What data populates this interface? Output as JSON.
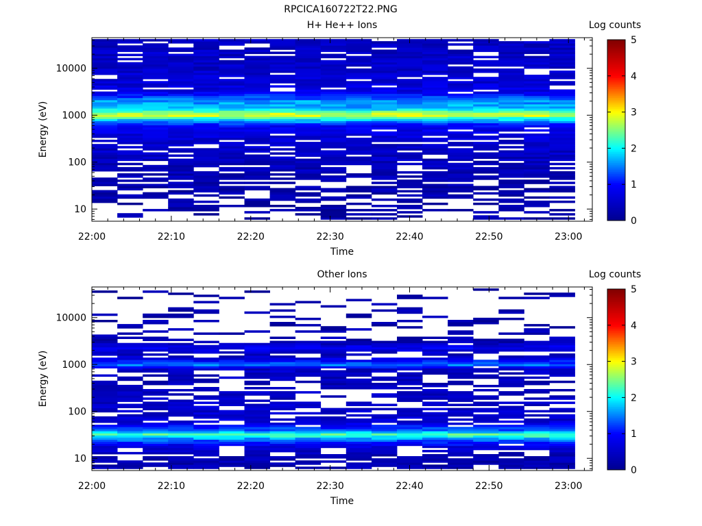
{
  "figure_title": "RPCICA160722T22.PNG",
  "colormap": [
    "#00008f",
    "#0000ff",
    "#00ffff",
    "#ffff00",
    "#ff0000",
    "#800000"
  ],
  "chart_data": [
    {
      "type": "heatmap",
      "title": "H+ He++ Ions",
      "xlabel": "Time",
      "ylabel": "Energy (eV)",
      "y_scale": "log",
      "ylim": [
        5.5,
        45000
      ],
      "xlim": [
        "22:00",
        "23:03"
      ],
      "x_ticks": [
        "22:00",
        "22:10",
        "22:20",
        "22:30",
        "22:40",
        "22:50",
        "23:00"
      ],
      "y_ticks": [
        {
          "value": 10,
          "label": "10"
        },
        {
          "value": 100,
          "label": "100"
        },
        {
          "value": 1000,
          "label": "1000"
        },
        {
          "value": 10000,
          "label": "10000"
        }
      ],
      "colorbar": {
        "label": "Log counts",
        "range": [
          0,
          5
        ],
        "ticks": [
          "0",
          "1",
          "2",
          "3",
          "4",
          "5"
        ]
      },
      "time_bins_start": "22:00",
      "time_bin_minutes": 3.2,
      "time_bin_count": 19,
      "profile": [
        {
          "energy": 10,
          "log_counts": 0.2
        },
        {
          "energy": 20,
          "log_counts": 0.25
        },
        {
          "energy": 40,
          "log_counts": 0.3
        },
        {
          "energy": 100,
          "log_counts": 0.4
        },
        {
          "energy": 300,
          "log_counts": 0.55
        },
        {
          "energy": 600,
          "log_counts": 0.9
        },
        {
          "energy": 850,
          "log_counts": 2.0
        },
        {
          "energy": 1000,
          "log_counts": 2.9
        },
        {
          "energy": 1150,
          "log_counts": 2.6
        },
        {
          "energy": 1400,
          "log_counts": 1.7
        },
        {
          "energy": 2000,
          "log_counts": 1.6
        },
        {
          "energy": 2500,
          "log_counts": 1.2
        },
        {
          "energy": 3500,
          "log_counts": 0.7
        },
        {
          "energy": 10000,
          "log_counts": 0.5
        },
        {
          "energy": 40000,
          "log_counts": 0.45
        }
      ],
      "empty_fraction": [
        {
          "energy": 10,
          "fraction": 0.6
        },
        {
          "energy": 40,
          "fraction": 0.35
        },
        {
          "energy": 100,
          "fraction": 0.2
        },
        {
          "energy": 400,
          "fraction": 0.12
        },
        {
          "energy": 700,
          "fraction": 0
        },
        {
          "energy": 2500,
          "fraction": 0
        },
        {
          "energy": 4000,
          "fraction": 0.12
        },
        {
          "energy": 40000,
          "fraction": 0.15
        }
      ]
    },
    {
      "type": "heatmap",
      "title": "Other Ions",
      "xlabel": "Time",
      "ylabel": "Energy (eV)",
      "y_scale": "log",
      "ylim": [
        5.5,
        45000
      ],
      "xlim": [
        "22:00",
        "23:03"
      ],
      "x_ticks": [
        "22:00",
        "22:10",
        "22:20",
        "22:30",
        "22:40",
        "22:50",
        "23:00"
      ],
      "y_ticks": [
        {
          "value": 10,
          "label": "10"
        },
        {
          "value": 100,
          "label": "100"
        },
        {
          "value": 1000,
          "label": "1000"
        },
        {
          "value": 10000,
          "label": "10000"
        }
      ],
      "colorbar": {
        "label": "Log counts",
        "range": [
          0,
          5
        ],
        "ticks": [
          "0",
          "1",
          "2",
          "3",
          "4",
          "5"
        ]
      },
      "time_bins_start": "22:00",
      "time_bin_minutes": 3.2,
      "time_bin_count": 19,
      "profile": [
        {
          "energy": 8,
          "log_counts": 0.3
        },
        {
          "energy": 13,
          "log_counts": 0.35
        },
        {
          "energy": 18,
          "log_counts": 0.7
        },
        {
          "energy": 25,
          "log_counts": 1.4
        },
        {
          "energy": 32,
          "log_counts": 2.4
        },
        {
          "energy": 40,
          "log_counts": 1.4
        },
        {
          "energy": 60,
          "log_counts": 0.6
        },
        {
          "energy": 150,
          "log_counts": 0.5
        },
        {
          "energy": 400,
          "log_counts": 0.35
        },
        {
          "energy": 800,
          "log_counts": 0.5
        },
        {
          "energy": 1000,
          "log_counts": 1.5
        },
        {
          "energy": 1200,
          "log_counts": 1.0
        },
        {
          "energy": 1600,
          "log_counts": 0.3
        },
        {
          "energy": 2300,
          "log_counts": 0.9
        },
        {
          "energy": 3000,
          "log_counts": 0.3
        },
        {
          "energy": 40000,
          "log_counts": 0.2
        }
      ],
      "empty_fraction": [
        {
          "energy": 8,
          "fraction": 0.2
        },
        {
          "energy": 15,
          "fraction": 0.35
        },
        {
          "energy": 22,
          "fraction": 0
        },
        {
          "energy": 45,
          "fraction": 0
        },
        {
          "energy": 70,
          "fraction": 0.25
        },
        {
          "energy": 300,
          "fraction": 0.45
        },
        {
          "energy": 800,
          "fraction": 0.25
        },
        {
          "energy": 900,
          "fraction": 0
        },
        {
          "energy": 1300,
          "fraction": 0
        },
        {
          "energy": 1600,
          "fraction": 0.5
        },
        {
          "energy": 2100,
          "fraction": 0
        },
        {
          "energy": 2700,
          "fraction": 0
        },
        {
          "energy": 3500,
          "fraction": 0.75
        },
        {
          "energy": 45000,
          "fraction": 0.85
        }
      ]
    }
  ]
}
